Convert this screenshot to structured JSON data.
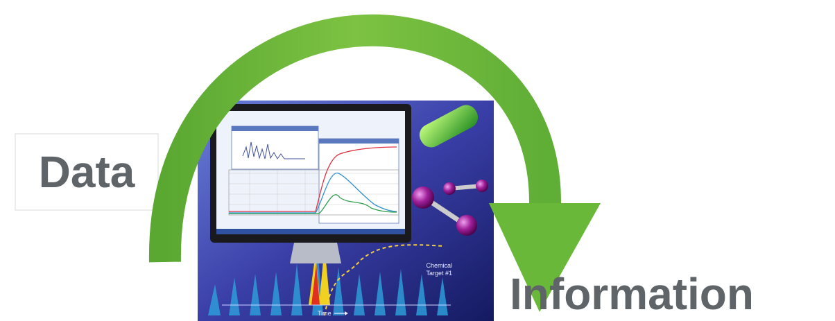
{
  "labels": {
    "left": "Data",
    "right": "Information"
  },
  "illustration": {
    "annotation": [
      "Chemical",
      "Target #1"
    ],
    "x_axis_label": "Time"
  }
}
